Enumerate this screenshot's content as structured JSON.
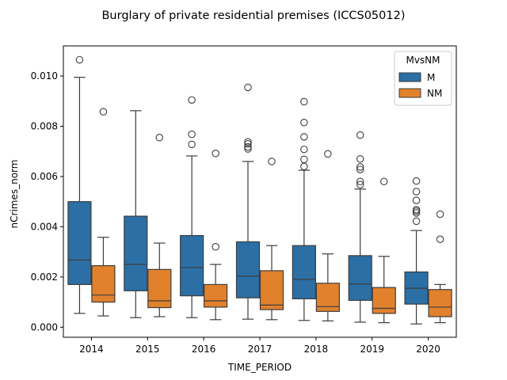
{
  "chart_data": {
    "type": "box",
    "title": "Burglary of private residential premises (ICCS05012)",
    "xlabel": "TIME_PERIOD",
    "ylabel": "nCrimes_norm",
    "ylim": [
      -0.0004,
      0.0112
    ],
    "yticks": [
      0.0,
      0.002,
      0.004,
      0.006,
      0.008,
      0.01
    ],
    "ytick_labels": [
      "0.000",
      "0.002",
      "0.004",
      "0.006",
      "0.008",
      "0.010"
    ],
    "categories": [
      "2014",
      "2015",
      "2016",
      "2017",
      "2018",
      "2019",
      "2020"
    ],
    "grid": false,
    "legend": {
      "title": "MvsNM",
      "position": "top-right",
      "entries": [
        "M",
        "NM"
      ]
    },
    "series": [
      {
        "name": "M",
        "color": "#2b6fa5",
        "boxes": [
          {
            "whisker_low": 0.00055,
            "q1": 0.0017,
            "median": 0.00268,
            "q3": 0.005,
            "whisker_high": 0.00995,
            "outliers": [
              0.01065
            ]
          },
          {
            "whisker_low": 0.00038,
            "q1": 0.00145,
            "median": 0.0025,
            "q3": 0.00442,
            "whisker_high": 0.00862,
            "outliers": []
          },
          {
            "whisker_low": 0.00038,
            "q1": 0.00125,
            "median": 0.00238,
            "q3": 0.00365,
            "whisker_high": 0.00682,
            "outliers": [
              0.00728,
              0.00768,
              0.00905
            ]
          },
          {
            "whisker_low": 0.00032,
            "q1": 0.00117,
            "median": 0.00203,
            "q3": 0.0034,
            "whisker_high": 0.0066,
            "outliers": [
              0.0071,
              0.00718,
              0.0073,
              0.00738,
              0.00955
            ]
          },
          {
            "whisker_low": 0.00027,
            "q1": 0.00113,
            "median": 0.0019,
            "q3": 0.00325,
            "whisker_high": 0.00625,
            "outliers": [
              0.0064,
              0.00668,
              0.00708,
              0.00758,
              0.00815,
              0.00898
            ]
          },
          {
            "whisker_low": 0.0002,
            "q1": 0.00107,
            "median": 0.00172,
            "q3": 0.00285,
            "whisker_high": 0.0055,
            "outliers": [
              0.00568,
              0.0058,
              0.00628,
              0.00638,
              0.0067,
              0.00765
            ]
          },
          {
            "whisker_low": 0.00013,
            "q1": 0.00092,
            "median": 0.00155,
            "q3": 0.0022,
            "whisker_high": 0.00385,
            "outliers": [
              0.00422,
              0.00455,
              0.00462,
              0.00468,
              0.00505,
              0.0054,
              0.00582
            ]
          }
        ]
      },
      {
        "name": "NM",
        "color": "#e1812c",
        "boxes": [
          {
            "whisker_low": 0.00045,
            "q1": 0.001,
            "median": 0.00128,
            "q3": 0.00245,
            "whisker_high": 0.00358,
            "outliers": [
              0.00858
            ]
          },
          {
            "whisker_low": 0.00042,
            "q1": 0.00078,
            "median": 0.00105,
            "q3": 0.0023,
            "whisker_high": 0.00335,
            "outliers": [
              0.00755
            ]
          },
          {
            "whisker_low": 0.0003,
            "q1": 0.0008,
            "median": 0.00105,
            "q3": 0.0017,
            "whisker_high": 0.0025,
            "outliers": [
              0.0032,
              0.00692
            ]
          },
          {
            "whisker_low": 0.0003,
            "q1": 0.0007,
            "median": 0.00088,
            "q3": 0.00225,
            "whisker_high": 0.00325,
            "outliers": [
              0.0066
            ]
          },
          {
            "whisker_low": 0.00025,
            "q1": 0.00063,
            "median": 0.00082,
            "q3": 0.00175,
            "whisker_high": 0.00292,
            "outliers": [
              0.0069
            ]
          },
          {
            "whisker_low": 0.00018,
            "q1": 0.00055,
            "median": 0.00075,
            "q3": 0.00158,
            "whisker_high": 0.00282,
            "outliers": [
              0.0058
            ]
          },
          {
            "whisker_low": 0.00018,
            "q1": 0.00042,
            "median": 0.0008,
            "q3": 0.0015,
            "whisker_high": 0.0017,
            "outliers": [
              0.0035,
              0.0045
            ]
          }
        ]
      }
    ]
  }
}
